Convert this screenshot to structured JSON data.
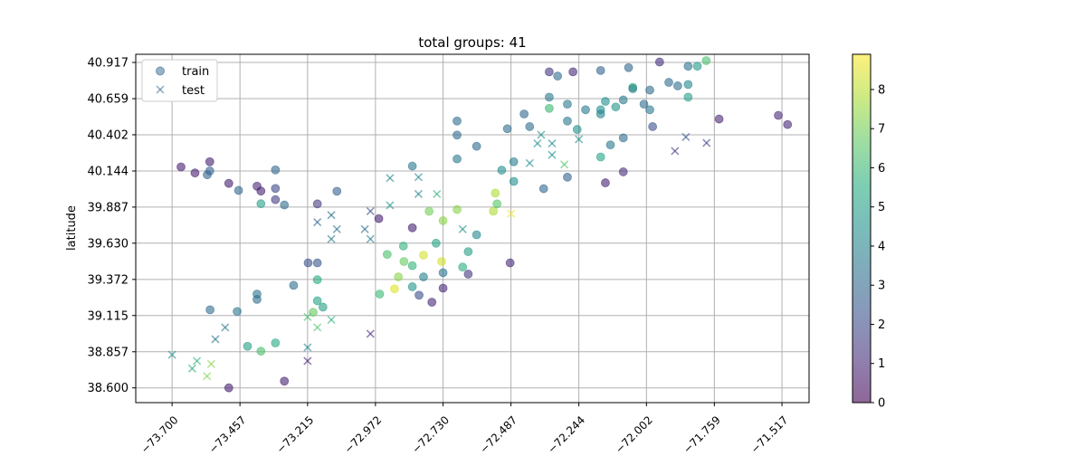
{
  "chart_data": {
    "type": "scatter",
    "title": "total groups: 41",
    "xlabel": "",
    "ylabel": "latitude",
    "xlim": [
      -73.83,
      -71.42
    ],
    "ylim": [
      38.495,
      40.975
    ],
    "grid": true,
    "legend": {
      "placement": "top-left",
      "entries": [
        "train",
        "test"
      ]
    },
    "x_ticks": [
      "−73.700",
      "−73.457",
      "−73.215",
      "−72.972",
      "−72.730",
      "−72.487",
      "−72.244",
      "−72.002",
      "−71.759",
      "−71.517"
    ],
    "x_tick_values": [
      -73.7,
      -73.457,
      -73.215,
      -72.972,
      -72.73,
      -72.487,
      -72.244,
      -72.002,
      -71.759,
      -71.517
    ],
    "y_ticks": [
      "40.917",
      "40.659",
      "40.402",
      "40.144",
      "39.887",
      "39.630",
      "39.372",
      "39.115",
      "38.857",
      "38.600"
    ],
    "y_tick_values": [
      40.917,
      40.659,
      40.402,
      40.144,
      39.887,
      39.63,
      39.372,
      39.115,
      38.857,
      38.6
    ],
    "colorbar": {
      "colormap": "viridis",
      "range": [
        0,
        8.9
      ],
      "ticks": [
        "0",
        "1",
        "2",
        "3",
        "4",
        "5",
        "6",
        "7",
        "8"
      ],
      "tick_values": [
        0,
        1,
        2,
        3,
        4,
        5,
        6,
        7,
        8
      ]
    },
    "series": [
      {
        "name": "train",
        "marker": "circle",
        "points": [
          [
            -73.668,
            40.173,
            0.8
          ],
          [
            -73.618,
            40.13,
            0.8
          ],
          [
            -73.574,
            40.117,
            2.8
          ],
          [
            -73.565,
            40.21,
            0.8
          ],
          [
            -73.565,
            40.145,
            2.8
          ],
          [
            -73.497,
            40.056,
            0.8
          ],
          [
            -73.462,
            40.006,
            3.0
          ],
          [
            -73.396,
            40.036,
            1.0
          ],
          [
            -73.382,
            40.001,
            0.8
          ],
          [
            -73.382,
            39.911,
            5.0
          ],
          [
            -73.33,
            40.152,
            3.0
          ],
          [
            -73.33,
            40.02,
            2.0
          ],
          [
            -73.33,
            39.94,
            1.6
          ],
          [
            -73.298,
            39.902,
            3.2
          ],
          [
            -73.564,
            39.156,
            3.2
          ],
          [
            -73.467,
            39.144,
            3.6
          ],
          [
            -73.43,
            38.896,
            5.0
          ],
          [
            -73.497,
            38.6,
            0.8
          ],
          [
            -73.396,
            39.268,
            3.4
          ],
          [
            -73.396,
            39.23,
            3.2
          ],
          [
            -73.298,
            38.648,
            0.8
          ],
          [
            -73.382,
            38.861,
            6.3
          ],
          [
            -73.33,
            38.92,
            5.4
          ],
          [
            -73.265,
            39.33,
            3.2
          ],
          [
            -73.213,
            39.49,
            2.2
          ],
          [
            -73.18,
            39.22,
            5.2
          ],
          [
            -73.16,
            39.175,
            5.0
          ],
          [
            -73.18,
            39.49,
            2.4
          ],
          [
            -73.18,
            39.37,
            5.4
          ],
          [
            -73.195,
            39.138,
            6.8
          ],
          [
            -73.18,
            39.91,
            1.6
          ],
          [
            -73.11,
            40.0,
            2.8
          ],
          [
            -72.93,
            39.55,
            6.3
          ],
          [
            -72.957,
            39.268,
            6.0
          ],
          [
            -72.89,
            39.39,
            7.3
          ],
          [
            -72.872,
            39.61,
            5.8
          ],
          [
            -72.87,
            39.5,
            6.8
          ],
          [
            -72.904,
            39.305,
            8.5
          ],
          [
            -72.84,
            39.47,
            5.8
          ],
          [
            -72.84,
            39.32,
            4.6
          ],
          [
            -72.8,
            39.545,
            8.3
          ],
          [
            -72.8,
            39.39,
            3.9
          ],
          [
            -72.816,
            39.26,
            2.2
          ],
          [
            -72.77,
            39.21,
            1.0
          ],
          [
            -72.755,
            39.63,
            5.2
          ],
          [
            -72.73,
            39.42,
            3.4
          ],
          [
            -72.73,
            39.31,
            1.0
          ],
          [
            -72.73,
            39.79,
            7.3
          ],
          [
            -72.78,
            39.857,
            7.0
          ],
          [
            -72.84,
            40.179,
            3.6
          ],
          [
            -72.96,
            39.805,
            0.8
          ],
          [
            -72.84,
            39.74,
            0.8
          ],
          [
            -72.735,
            39.5,
            8.3
          ],
          [
            -72.68,
            39.87,
            7.3
          ],
          [
            -72.68,
            40.23,
            3.6
          ],
          [
            -72.68,
            40.4,
            3.2
          ],
          [
            -72.68,
            40.5,
            3.2
          ],
          [
            -72.61,
            40.32,
            3.2
          ],
          [
            -72.66,
            39.46,
            5.6
          ],
          [
            -72.64,
            39.41,
            1.4
          ],
          [
            -72.64,
            39.57,
            5.0
          ],
          [
            -72.61,
            39.69,
            4.2
          ],
          [
            -72.55,
            39.858,
            7.8
          ],
          [
            -72.543,
            39.987,
            7.8
          ],
          [
            -72.537,
            39.91,
            6.5
          ],
          [
            -72.52,
            40.15,
            4.4
          ],
          [
            -72.49,
            39.49,
            1.0
          ],
          [
            -72.477,
            40.07,
            4.4
          ],
          [
            -72.477,
            40.21,
            3.8
          ],
          [
            -72.5,
            40.445,
            3.2
          ],
          [
            -72.42,
            40.46,
            3.2
          ],
          [
            -72.44,
            40.55,
            3.0
          ],
          [
            -72.37,
            40.018,
            3.0
          ],
          [
            -72.35,
            40.59,
            6.0
          ],
          [
            -72.35,
            40.67,
            3.6
          ],
          [
            -72.35,
            40.85,
            1.4
          ],
          [
            -72.32,
            40.82,
            3.2
          ],
          [
            -72.285,
            40.5,
            3.6
          ],
          [
            -72.285,
            40.62,
            3.6
          ],
          [
            -72.265,
            40.85,
            1.0
          ],
          [
            -72.285,
            40.1,
            2.8
          ],
          [
            -72.25,
            40.44,
            4.4
          ],
          [
            -72.22,
            40.58,
            3.6
          ],
          [
            -72.166,
            40.86,
            2.8
          ],
          [
            -72.166,
            40.58,
            4.4
          ],
          [
            -72.166,
            40.55,
            4.0
          ],
          [
            -72.166,
            40.244,
            5.2
          ],
          [
            -72.149,
            40.64,
            4.4
          ],
          [
            -72.149,
            40.06,
            0.8
          ],
          [
            -72.131,
            40.33,
            3.6
          ],
          [
            -72.112,
            40.6,
            4.6
          ],
          [
            -72.085,
            40.38,
            3.2
          ],
          [
            -72.085,
            40.65,
            3.6
          ],
          [
            -72.085,
            40.138,
            1.2
          ],
          [
            -72.066,
            40.88,
            3.0
          ],
          [
            -72.051,
            40.74,
            5.8
          ],
          [
            -72.051,
            40.73,
            3.8
          ],
          [
            -72.011,
            40.62,
            3.2
          ],
          [
            -71.99,
            40.72,
            3.2
          ],
          [
            -71.99,
            40.58,
            3.6
          ],
          [
            -71.98,
            40.46,
            2.2
          ],
          [
            -71.955,
            40.92,
            1.2
          ],
          [
            -71.922,
            40.775,
            3.2
          ],
          [
            -71.89,
            40.75,
            3.2
          ],
          [
            -71.853,
            40.89,
            3.4
          ],
          [
            -71.853,
            40.76,
            4.2
          ],
          [
            -71.853,
            40.67,
            5.0
          ],
          [
            -71.82,
            40.89,
            4.8
          ],
          [
            -71.788,
            40.93,
            6.3
          ],
          [
            -71.742,
            40.514,
            1.0
          ],
          [
            -71.53,
            40.54,
            1.0
          ],
          [
            -71.497,
            40.475,
            1.0
          ]
        ]
      },
      {
        "name": "test",
        "marker": "x",
        "points": [
          [
            -73.7,
            38.836,
            4.4
          ],
          [
            -73.628,
            38.738,
            5.6
          ],
          [
            -73.611,
            38.792,
            5.8
          ],
          [
            -73.575,
            38.683,
            7.3
          ],
          [
            -73.56,
            38.77,
            7.3
          ],
          [
            -73.545,
            38.946,
            3.6
          ],
          [
            -73.51,
            39.03,
            3.6
          ],
          [
            -73.215,
            38.888,
            4.0
          ],
          [
            -73.215,
            38.792,
            1.0
          ],
          [
            -73.215,
            39.105,
            6.3
          ],
          [
            -73.18,
            39.03,
            6.5
          ],
          [
            -73.13,
            39.085,
            5.8
          ],
          [
            -73.18,
            39.78,
            2.8
          ],
          [
            -73.13,
            39.83,
            3.4
          ],
          [
            -73.13,
            39.66,
            3.6
          ],
          [
            -73.11,
            39.73,
            3.4
          ],
          [
            -73.01,
            39.73,
            3.2
          ],
          [
            -72.99,
            39.66,
            3.8
          ],
          [
            -72.99,
            39.858,
            2.2
          ],
          [
            -72.99,
            38.985,
            1.2
          ],
          [
            -72.92,
            40.094,
            4.2
          ],
          [
            -72.92,
            39.9,
            4.6
          ],
          [
            -72.818,
            40.1,
            4.2
          ],
          [
            -72.818,
            39.98,
            4.0
          ],
          [
            -72.752,
            39.98,
            5.8
          ],
          [
            -72.66,
            39.73,
            4.6
          ],
          [
            -72.487,
            39.84,
            8.7
          ],
          [
            -72.42,
            40.2,
            4.4
          ],
          [
            -72.392,
            40.34,
            4.4
          ],
          [
            -72.379,
            40.402,
            4.4
          ],
          [
            -72.34,
            40.34,
            4.4
          ],
          [
            -72.34,
            40.259,
            4.4
          ],
          [
            -72.296,
            40.19,
            6.5
          ],
          [
            -72.244,
            40.37,
            4.4
          ],
          [
            -71.9,
            40.286,
            1.6
          ],
          [
            -71.861,
            40.386,
            2.4
          ],
          [
            -71.787,
            40.344,
            1.8
          ]
        ]
      }
    ]
  }
}
